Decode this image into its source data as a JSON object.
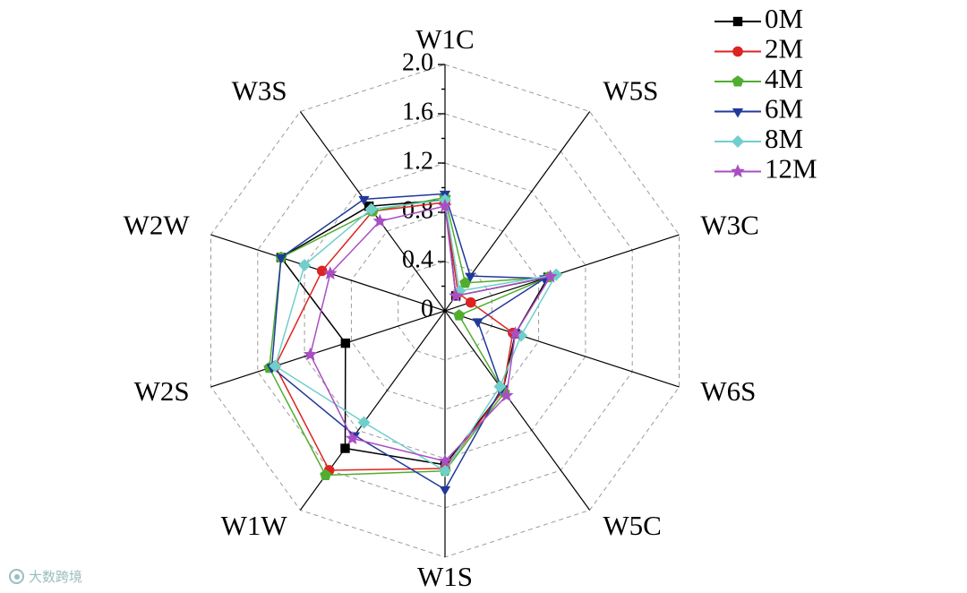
{
  "watermark": {
    "text": "大数跨境"
  },
  "chart_data": {
    "type": "radar",
    "title": "",
    "axes": [
      "W1C",
      "W5S",
      "W3C",
      "W6S",
      "W5C",
      "W1S",
      "W1W",
      "W2S",
      "W2W",
      "W3S"
    ],
    "radial_ticks": [
      "0",
      "0.4",
      "0.8",
      "1.2",
      "1.6",
      "2.0"
    ],
    "radial_tick_values": [
      0,
      0.4,
      0.8,
      1.2,
      1.6,
      2.0
    ],
    "rlim": [
      0,
      2.0
    ],
    "grid": "dashed concentric decagon rings with solid black spokes",
    "legend_position": "top-right",
    "series": [
      {
        "name": "0M",
        "color": "#000000",
        "marker": "square",
        "values": [
          0.9,
          0.15,
          0.88,
          0.6,
          0.8,
          1.25,
          1.38,
          0.85,
          1.4,
          1.05
        ]
      },
      {
        "name": "2M",
        "color": "#dd2420",
        "marker": "circle",
        "values": [
          0.88,
          0.18,
          0.22,
          0.58,
          0.8,
          1.28,
          1.6,
          1.45,
          1.05,
          1.0
        ]
      },
      {
        "name": "4M",
        "color": "#4fae2f",
        "marker": "pentagon",
        "values": [
          0.92,
          0.28,
          0.88,
          0.12,
          0.82,
          1.3,
          1.65,
          1.5,
          1.4,
          1.0
        ]
      },
      {
        "name": "6M",
        "color": "#20399b",
        "marker": "triangle-down",
        "values": [
          0.95,
          0.35,
          0.85,
          0.28,
          0.78,
          1.45,
          1.25,
          1.48,
          1.4,
          1.12
        ]
      },
      {
        "name": "8M",
        "color": "#70cfcb",
        "marker": "diamond",
        "values": [
          0.9,
          0.2,
          0.95,
          0.65,
          0.76,
          1.3,
          1.12,
          1.45,
          1.2,
          1.02
        ]
      },
      {
        "name": "12M",
        "color": "#a94fc2",
        "marker": "star",
        "values": [
          0.85,
          0.15,
          0.9,
          0.6,
          0.85,
          1.22,
          1.28,
          1.15,
          0.98,
          0.9
        ]
      }
    ]
  }
}
